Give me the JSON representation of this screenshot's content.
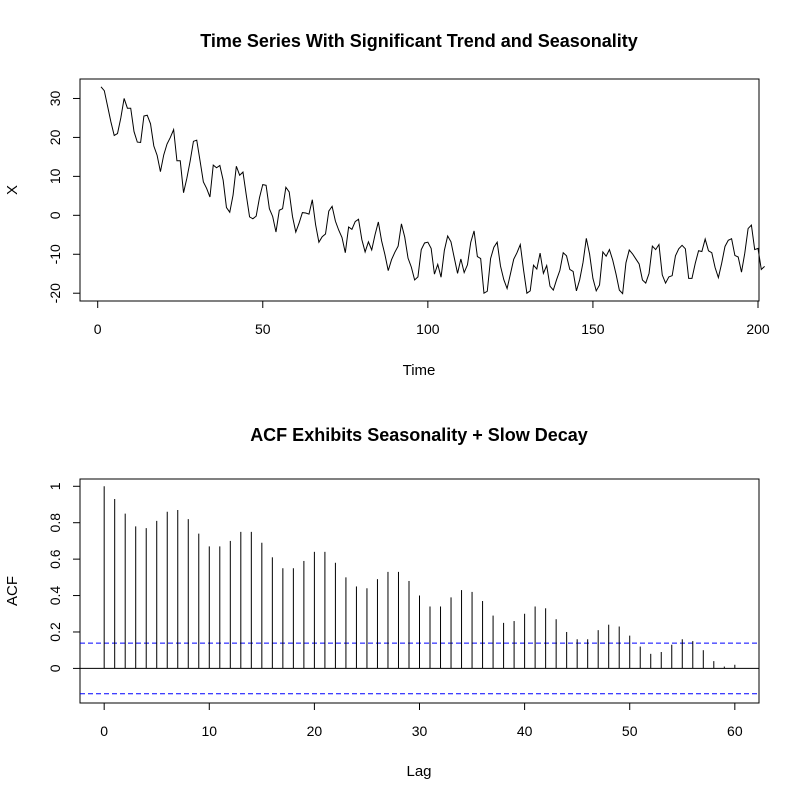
{
  "chart_data": [
    {
      "type": "line",
      "title": "Time Series With Significant Trend and Seasonality",
      "xlabel": "Time",
      "ylabel": "X",
      "xlim": [
        1,
        200
      ],
      "ylim": [
        -22,
        35
      ],
      "xticks": [
        0,
        50,
        100,
        150,
        200
      ],
      "yticks": [
        -20,
        -10,
        0,
        10,
        20,
        30
      ],
      "line_color": "#000000",
      "series": [
        {
          "values": [
            33,
            32,
            28,
            24,
            20.5,
            21,
            25,
            30,
            27.5,
            27.5,
            21.5,
            18.8,
            18.7,
            25.5,
            25.7,
            23.5,
            17.8,
            15.4,
            11.2,
            15.5,
            18.3,
            20,
            22,
            14,
            14,
            5.8,
            9.5,
            13.9,
            19,
            19.3,
            14,
            8.6,
            6.9,
            4.7,
            12.9,
            12.2,
            12.8,
            9,
            2,
            0.8,
            5.2,
            12.6,
            10.3,
            11.1,
            5.2,
            -0.4,
            -0.9,
            -0.2,
            4.5,
            7.9,
            7.7,
            1.7,
            -0.3,
            -4.3,
            1.3,
            1.7,
            7.2,
            6,
            -0.3,
            -4.3,
            -2,
            0.7,
            0.6,
            0.3,
            4,
            -2.4,
            -6.9,
            -5.5,
            -4.8,
            1.1,
            2.3,
            -1.5,
            -3.8,
            -5.7,
            -9.6,
            -3,
            -3.6,
            -1.6,
            -1,
            -6.2,
            -9.4,
            -6.8,
            -8.9,
            -5,
            -1.7,
            -6.6,
            -10.1,
            -14.2,
            -11.4,
            -9.5,
            -7.9,
            -2.2,
            -5.6,
            -11,
            -13.3,
            -16.6,
            -15.8,
            -8.8,
            -7.1,
            -6.9,
            -8.5,
            -15.1,
            -12.6,
            -15.9,
            -9,
            -5.3,
            -6.8,
            -10.9,
            -14.9,
            -11.2,
            -14.7,
            -12.7,
            -6.9,
            -4,
            -10.6,
            -11.1,
            -20,
            -19.5,
            -11.1,
            -8.2,
            -6.9,
            -13,
            -16.5,
            -18.8,
            -15.1,
            -11.3,
            -9.6,
            -7.5,
            -14.1,
            -20,
            -19.4,
            -12.8,
            -13.8,
            -9.7,
            -14.9,
            -12.9,
            -18.2,
            -19.2,
            -16.5,
            -14.1,
            -9.6,
            -10.4,
            -13.9,
            -14.4,
            -19.4,
            -16.5,
            -12.1,
            -5.9,
            -10,
            -16.2,
            -19.4,
            -17.9,
            -9.4,
            -10.5,
            -8.8,
            -11.5,
            -15.1,
            -19.2,
            -20.1,
            -12.2,
            -8.9,
            -9.9,
            -11.2,
            -12.5,
            -16.6,
            -17.4,
            -14.9,
            -7.9,
            -8.8,
            -7.5,
            -15.3,
            -17.4,
            -15.8,
            -15.5,
            -10.4,
            -8.6,
            -7.7,
            -8.6,
            -16.2,
            -16.2,
            -12.3,
            -9.1,
            -9.3,
            -6.1,
            -9.1,
            -9.6,
            -13.4,
            -16,
            -12.3,
            -8,
            -6.4,
            -6,
            -10.3,
            -10.7,
            -14.6,
            -9.7,
            -3.4,
            -2.5,
            -8.8,
            -8.5,
            -13.9,
            -13.1
          ]
        }
      ]
    },
    {
      "type": "bar",
      "title": "ACF Exhibits Seasonality + Slow Decay",
      "xlabel": "Lag",
      "ylabel": "ACF",
      "xlim": [
        -2.3,
        62.3
      ],
      "ylim": [
        -0.19,
        1.04
      ],
      "xticks": [
        0,
        10,
        20,
        30,
        40,
        50,
        60
      ],
      "yticks": [
        0.0,
        0.2,
        0.4,
        0.6,
        0.8,
        1.0
      ],
      "lags": [
        0,
        1,
        2,
        3,
        4,
        5,
        6,
        7,
        8,
        9,
        10,
        11,
        12,
        13,
        14,
        15,
        16,
        17,
        18,
        19,
        20,
        21,
        22,
        23,
        24,
        25,
        26,
        27,
        28,
        29,
        30,
        31,
        32,
        33,
        34,
        35,
        36,
        37,
        38,
        39,
        40,
        41,
        42,
        43,
        44,
        45,
        46,
        47,
        48,
        49,
        50,
        51,
        52,
        53,
        54,
        55,
        56,
        57,
        58,
        59,
        60
      ],
      "values": [
        1.0,
        0.93,
        0.85,
        0.78,
        0.77,
        0.81,
        0.86,
        0.87,
        0.82,
        0.74,
        0.67,
        0.67,
        0.7,
        0.75,
        0.75,
        0.69,
        0.61,
        0.55,
        0.55,
        0.59,
        0.64,
        0.64,
        0.58,
        0.5,
        0.45,
        0.44,
        0.49,
        0.53,
        0.53,
        0.48,
        0.4,
        0.34,
        0.34,
        0.39,
        0.43,
        0.42,
        0.37,
        0.29,
        0.25,
        0.26,
        0.3,
        0.34,
        0.33,
        0.27,
        0.2,
        0.16,
        0.16,
        0.21,
        0.24,
        0.23,
        0.18,
        0.12,
        0.08,
        0.09,
        0.13,
        0.16,
        0.15,
        0.1,
        0.04,
        0.01,
        0.02
      ],
      "confidence_bounds": [
        0.139,
        -0.139
      ],
      "confidence_color": "#0000ff",
      "bar_color": "#000000"
    }
  ]
}
